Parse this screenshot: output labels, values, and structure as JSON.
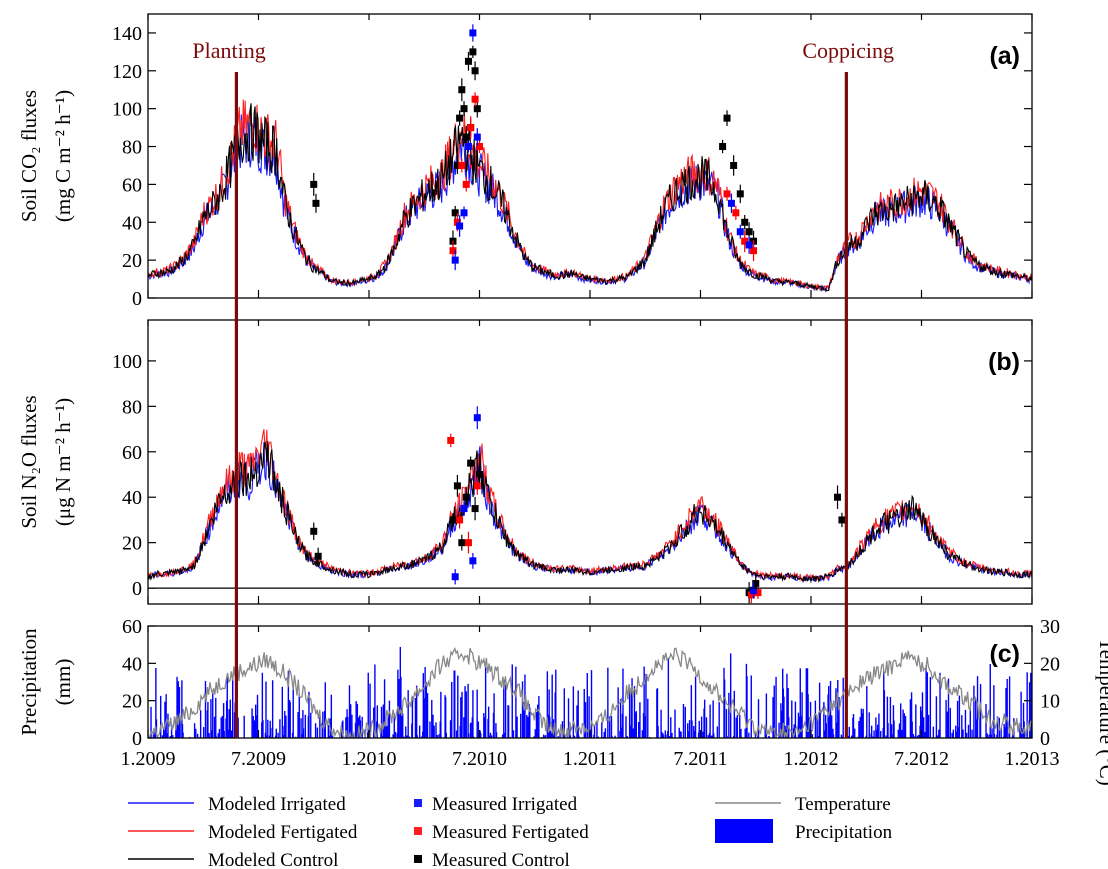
{
  "chart_data": [
    {
      "panel_label": "(a)",
      "type": "line",
      "ylabel_line1": "Soil CO₂ fluxes",
      "ylabel_line2": "(mg C m⁻² h⁻¹)",
      "ylim": [
        0,
        150
      ],
      "yticks": [
        0,
        20,
        40,
        60,
        80,
        100,
        120,
        140
      ],
      "modeled_envelope": {
        "t": [
          0,
          0.04,
          0.09,
          0.12,
          0.16,
          0.21,
          0.25,
          0.29,
          0.33,
          0.38,
          0.42,
          0.48,
          0.52,
          0.58,
          0.62,
          0.66,
          0.71,
          0.75,
          0.8,
          0.83,
          0.88,
          0.94,
          0.96,
          1.0,
          1.04,
          1.08,
          1.12,
          1.16,
          1.25,
          1.33,
          1.42,
          1.46,
          1.5,
          1.54,
          1.58,
          1.62,
          1.67,
          1.71,
          1.75,
          1.79,
          1.83,
          1.88,
          1.92,
          1.96,
          2.0,
          2.08,
          2.17,
          2.25,
          2.33,
          2.38,
          2.42,
          2.46,
          2.5,
          2.54,
          2.58,
          2.62,
          2.67,
          2.71,
          2.75,
          2.79,
          2.83,
          2.92,
          3.0,
          3.08,
          3.12,
          3.17,
          3.21,
          3.25,
          3.29,
          3.33,
          3.38,
          3.42,
          3.46,
          3.5,
          3.54,
          3.58,
          3.62,
          3.67,
          3.71,
          3.75,
          3.79,
          3.83,
          3.88,
          3.92,
          3.96,
          4.0
        ],
        "values": [
          12,
          13,
          14,
          16,
          20,
          28,
          42,
          48,
          56,
          72,
          85,
          88,
          82,
          78,
          50,
          35,
          22,
          16,
          12,
          9,
          8,
          8,
          9,
          10,
          12,
          18,
          28,
          42,
          55,
          62,
          85,
          75,
          68,
          62,
          55,
          45,
          30,
          20,
          16,
          14,
          12,
          12,
          13,
          11,
          10,
          9,
          11,
          20,
          45,
          55,
          60,
          62,
          64,
          62,
          55,
          35,
          20,
          15,
          12,
          11,
          9,
          8,
          6,
          5,
          20,
          28,
          30,
          38,
          45,
          46,
          48,
          50,
          52,
          54,
          52,
          48,
          40,
          30,
          22,
          18,
          16,
          14,
          13,
          12,
          11,
          10
        ]
      },
      "series": [
        {
          "name": "Modeled Irrigated",
          "color": "#1a1aff",
          "offset": -1.5
        },
        {
          "name": "Modeled Fertigated",
          "color": "#ff2020",
          "offset": 2
        },
        {
          "name": "Modeled Control",
          "color": "#000000",
          "offset": 0
        }
      ],
      "measured": {
        "Measured Control": {
          "t": [
            0.75,
            0.76,
            1.38,
            1.39,
            1.4,
            1.41,
            1.42,
            1.43,
            1.44,
            1.45,
            1.46,
            1.47,
            1.48,
            1.49,
            2.6,
            2.62,
            2.65,
            2.68,
            2.7,
            2.72,
            2.74
          ],
          "values": [
            60,
            50,
            30,
            45,
            70,
            95,
            110,
            100,
            85,
            125,
            90,
            130,
            120,
            100,
            80,
            95,
            70,
            55,
            40,
            35,
            30
          ]
        },
        "Measured Fertigated": {
          "t": [
            1.38,
            1.4,
            1.42,
            1.44,
            1.46,
            1.48,
            1.5,
            2.62,
            2.66,
            2.7,
            2.74
          ],
          "values": [
            25,
            40,
            70,
            60,
            90,
            105,
            80,
            55,
            45,
            30,
            25
          ]
        },
        "Measured Irrigated": {
          "t": [
            1.39,
            1.41,
            1.43,
            1.45,
            1.47,
            1.49,
            2.64,
            2.68,
            2.72
          ],
          "values": [
            20,
            38,
            45,
            80,
            140,
            85,
            50,
            35,
            28
          ]
        }
      }
    },
    {
      "panel_label": "(b)",
      "type": "line",
      "ylabel_line1": "Soil N₂O fluxes",
      "ylabel_line2": "(μg N m⁻² h⁻¹)",
      "ylim": [
        -7,
        118
      ],
      "yticks": [
        0,
        20,
        40,
        60,
        80,
        100
      ],
      "modeled_envelope": {
        "t": [
          0,
          0.04,
          0.08,
          0.12,
          0.17,
          0.21,
          0.25,
          0.29,
          0.33,
          0.38,
          0.42,
          0.46,
          0.5,
          0.54,
          0.58,
          0.62,
          0.67,
          0.71,
          0.75,
          0.79,
          0.83,
          0.88,
          0.92,
          0.96,
          1.0,
          1.04,
          1.08,
          1.12,
          1.17,
          1.25,
          1.33,
          1.38,
          1.42,
          1.46,
          1.5,
          1.54,
          1.58,
          1.62,
          1.67,
          1.71,
          1.75,
          1.79,
          1.83,
          1.92,
          2.0,
          2.08,
          2.17,
          2.25,
          2.33,
          2.38,
          2.42,
          2.46,
          2.5,
          2.54,
          2.58,
          2.62,
          2.67,
          2.71,
          2.75,
          2.79,
          2.83,
          2.92,
          3.0,
          3.08,
          3.12,
          3.17,
          3.21,
          3.25,
          3.29,
          3.33,
          3.38,
          3.42,
          3.46,
          3.5,
          3.54,
          3.58,
          3.62,
          3.67,
          3.71,
          3.75,
          3.79,
          3.83,
          3.88,
          3.92,
          3.96,
          4.0
        ],
        "values": [
          5,
          6,
          6,
          7,
          8,
          10,
          20,
          30,
          40,
          45,
          50,
          48,
          55,
          60,
          45,
          35,
          22,
          15,
          12,
          10,
          8,
          7,
          6,
          6,
          6,
          7,
          8,
          9,
          10,
          12,
          18,
          30,
          35,
          45,
          55,
          40,
          30,
          22,
          15,
          12,
          10,
          9,
          8,
          8,
          7,
          8,
          9,
          10,
          15,
          20,
          25,
          30,
          35,
          30,
          25,
          20,
          12,
          8,
          6,
          5,
          5,
          5,
          4,
          5,
          8,
          10,
          15,
          20,
          25,
          28,
          30,
          32,
          35,
          30,
          25,
          20,
          15,
          12,
          10,
          9,
          8,
          7,
          7,
          6,
          6,
          6
        ]
      },
      "series": [
        {
          "name": "Modeled Irrigated",
          "color": "#1a1aff",
          "offset": -1
        },
        {
          "name": "Modeled Fertigated",
          "color": "#ff2020",
          "offset": 3
        },
        {
          "name": "Modeled Control",
          "color": "#000000",
          "offset": 0
        }
      ],
      "measured": {
        "Measured Control": {
          "t": [
            0.75,
            0.77,
            1.38,
            1.4,
            1.42,
            1.44,
            1.46,
            1.48,
            1.5,
            2.72,
            2.75,
            3.12,
            3.14
          ],
          "values": [
            25,
            14,
            30,
            45,
            20,
            40,
            55,
            35,
            50,
            -2,
            2,
            40,
            30
          ]
        },
        "Measured Fertigated": {
          "t": [
            1.37,
            1.41,
            1.45,
            1.49,
            2.73,
            2.76
          ],
          "values": [
            65,
            30,
            20,
            45,
            -3,
            -2
          ]
        },
        "Measured Irrigated": {
          "t": [
            1.39,
            1.43,
            1.47,
            1.49,
            2.74
          ],
          "values": [
            5,
            35,
            12,
            75,
            -1
          ]
        }
      }
    },
    {
      "panel_label": "(c)",
      "type": "bar",
      "ylabel_line1": "Precipitation",
      "ylabel_line2": "(mm)",
      "ylim": [
        0,
        60
      ],
      "yticks": [
        0,
        20,
        40,
        60
      ],
      "y2label": "Temperature (°C)",
      "y2lim": [
        0,
        30
      ],
      "y2ticks": [
        0,
        10,
        20,
        30
      ],
      "x_tick_labels": [
        "1.2009",
        "7.2009",
        "1.2010",
        "7.2010",
        "1.2011",
        "7.2011",
        "1.2012",
        "7.2012",
        "1.2013"
      ],
      "xlim": [
        0,
        4
      ],
      "temperature": {
        "t": [
          0,
          0.04,
          0.08,
          0.12,
          0.17,
          0.21,
          0.25,
          0.29,
          0.33,
          0.38,
          0.42,
          0.46,
          0.5,
          0.54,
          0.58,
          0.62,
          0.67,
          0.71,
          0.75,
          0.79,
          0.83,
          0.88,
          0.92,
          0.96,
          1.0,
          1.04,
          1.08,
          1.12,
          1.17,
          1.21,
          1.25,
          1.29,
          1.33,
          1.38,
          1.42,
          1.46,
          1.5,
          1.54,
          1.58,
          1.62,
          1.67,
          1.71,
          1.75,
          1.79,
          1.83,
          1.88,
          1.92,
          1.96,
          2.0,
          2.04,
          2.08,
          2.12,
          2.17,
          2.21,
          2.25,
          2.29,
          2.33,
          2.38,
          2.42,
          2.46,
          2.5,
          2.54,
          2.58,
          2.62,
          2.67,
          2.71,
          2.75,
          2.79,
          2.83,
          2.88,
          2.92,
          2.96,
          3.0,
          3.04,
          3.08,
          3.12,
          3.17,
          3.21,
          3.25,
          3.29,
          3.33,
          3.38,
          3.42,
          3.46,
          3.5,
          3.54,
          3.58,
          3.62,
          3.67,
          3.71,
          3.75,
          3.79,
          3.83,
          3.88,
          3.92,
          3.96,
          4.0
        ],
        "values": [
          1,
          2,
          3,
          4,
          6,
          8,
          11,
          13,
          15,
          17,
          18,
          19,
          20,
          21,
          19,
          17,
          14,
          11,
          8,
          5,
          3,
          1,
          0,
          1,
          2,
          3,
          5,
          7,
          9,
          12,
          14,
          17,
          20,
          21,
          23,
          22,
          20,
          19,
          17,
          15,
          13,
          9,
          6,
          4,
          2,
          2,
          3,
          3,
          3,
          4,
          6,
          9,
          12,
          14,
          17,
          19,
          20,
          22,
          21,
          19,
          17,
          14,
          12,
          9,
          7,
          5,
          3,
          2,
          1,
          2,
          1,
          2,
          4,
          6,
          8,
          10,
          12,
          14,
          16,
          17,
          18,
          20,
          22,
          21,
          20,
          19,
          16,
          14,
          12,
          10,
          8,
          6,
          5,
          4,
          3,
          3,
          3
        ]
      }
    }
  ],
  "events": [
    {
      "label": "Planting",
      "t": 0.4
    },
    {
      "label": "Coppicing",
      "t": 3.16
    }
  ],
  "legend": [
    {
      "label": "Modeled Irrigated",
      "kind": "line",
      "color": "#1a1aff"
    },
    {
      "label": "Modeled Fertigated",
      "kind": "line",
      "color": "#ff2020"
    },
    {
      "label": "Modeled Control",
      "kind": "line",
      "color": "#000000"
    },
    {
      "label": "Measured Irrigated",
      "kind": "marker",
      "color": "#1a1aff"
    },
    {
      "label": "Measured Fertigated",
      "kind": "marker",
      "color": "#ff2020"
    },
    {
      "label": "Measured Control",
      "kind": "marker",
      "color": "#000000"
    },
    {
      "label": "Temperature",
      "kind": "line",
      "color": "#888888"
    },
    {
      "label": "Precipitation",
      "kind": "patch",
      "color": "#0000ff"
    }
  ],
  "colors": {
    "event_line": "#7b0a0a",
    "precipitation": "#0000ff",
    "temperature": "#888888"
  }
}
